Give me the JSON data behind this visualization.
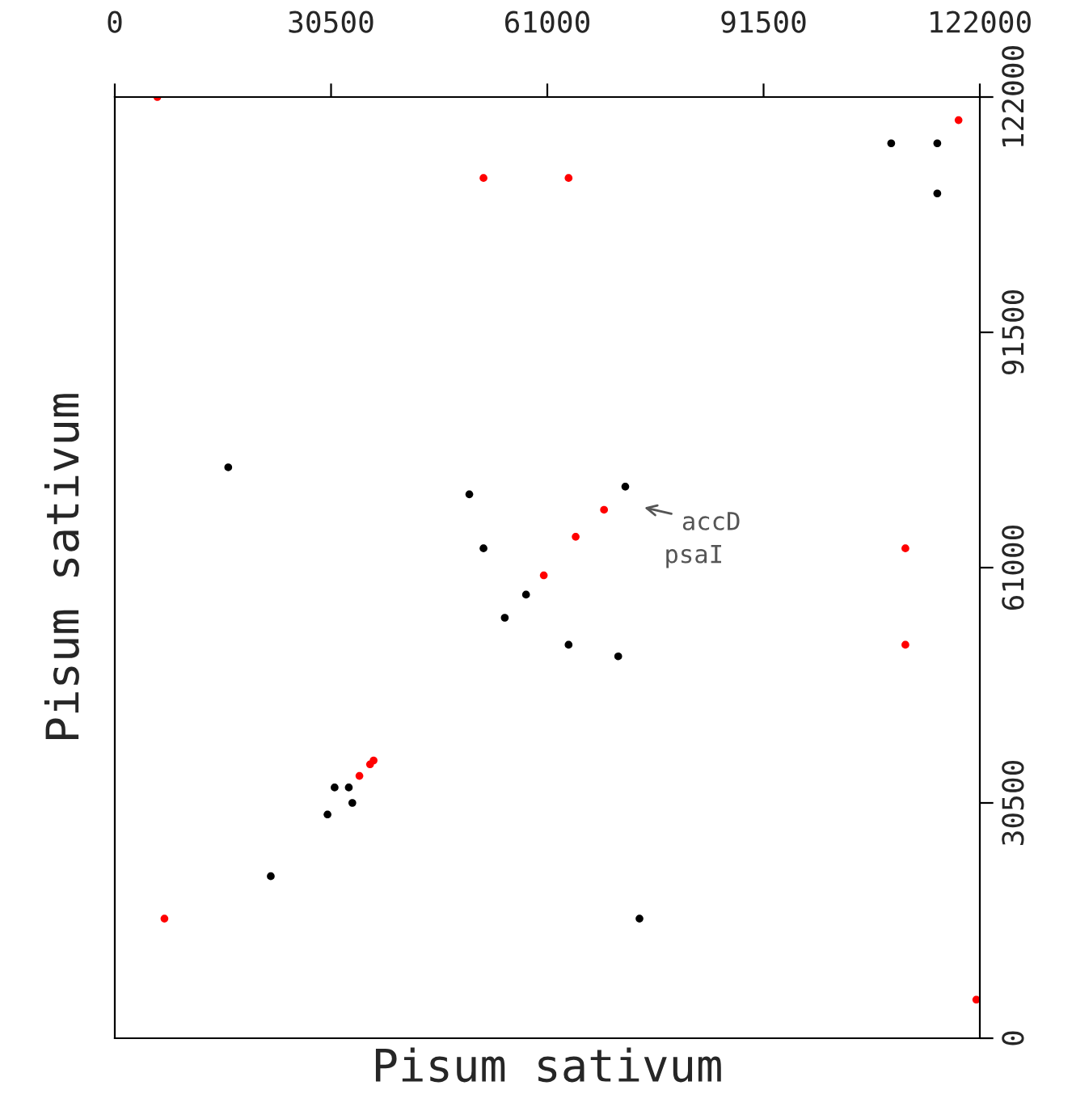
{
  "chart_data": {
    "type": "scatter",
    "xlabel": "Pisum sativum",
    "ylabel": "Pisum sativum",
    "xlim": [
      0,
      122000
    ],
    "ylim": [
      0,
      122000
    ],
    "xticks": [
      0,
      30500,
      61000,
      91500,
      122000
    ],
    "yticks": [
      0,
      30500,
      61000,
      91500,
      122000
    ],
    "marker": "circle",
    "grid": false,
    "legend": false,
    "series": [
      {
        "color": "#000000",
        "x": [
          16000,
          50000,
          52000,
          55000,
          58000,
          64000,
          71000,
          72000,
          74000,
          22000,
          30000,
          31000,
          33000,
          33500,
          109500,
          116000,
          116000
        ],
        "values": [
          74000,
          70500,
          63500,
          54500,
          57500,
          51000,
          49500,
          71500,
          15500,
          21000,
          29000,
          32500,
          32500,
          30500,
          116000,
          116000,
          109500
        ]
      },
      {
        "color": "#ff0000",
        "x": [
          6000,
          52000,
          64000,
          119000,
          69000,
          65000,
          60500,
          111500,
          111500,
          7000,
          121500,
          34500,
          36000,
          36500
        ],
        "values": [
          122000,
          111500,
          111500,
          119000,
          68500,
          65000,
          60000,
          63500,
          51000,
          15500,
          5000,
          34000,
          35500,
          36000
        ]
      }
    ],
    "annotations": [
      "accD",
      "psaI"
    ]
  }
}
